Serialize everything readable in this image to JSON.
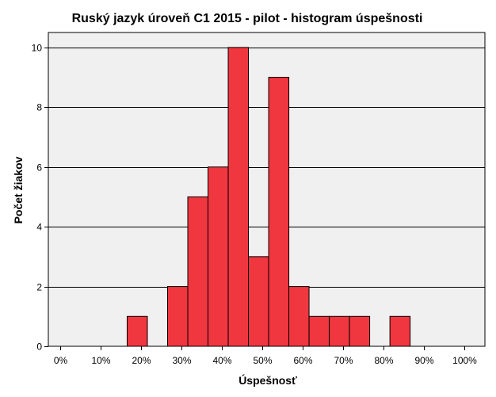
{
  "chart_data": {
    "type": "bar",
    "title": "Ruský jazyk úroveň C1 2015 - pilot - histogram úspešnosti",
    "xlabel": "Úspešnosť",
    "ylabel": "Počet žiakov",
    "x_unit": "percent",
    "xlim": [
      -3,
      105
    ],
    "ylim": [
      0,
      10.5
    ],
    "x_ticks": [
      0,
      10,
      20,
      30,
      40,
      50,
      60,
      70,
      80,
      90,
      100
    ],
    "x_tick_labels": [
      "0%",
      "10%",
      "20%",
      "30%",
      "40%",
      "50%",
      "60%",
      "70%",
      "80%",
      "90%",
      "100%"
    ],
    "y_ticks": [
      0,
      2,
      4,
      6,
      8,
      10
    ],
    "y_tick_labels": [
      "0",
      "2",
      "4",
      "6",
      "8",
      "10"
    ],
    "bin_width": 5,
    "bins": [
      {
        "from": 16.5,
        "to": 21.5,
        "count": 1
      },
      {
        "from": 26.5,
        "to": 31.5,
        "count": 2
      },
      {
        "from": 31.5,
        "to": 36.5,
        "count": 5
      },
      {
        "from": 36.5,
        "to": 41.5,
        "count": 6
      },
      {
        "from": 41.5,
        "to": 46.5,
        "count": 10
      },
      {
        "from": 46.5,
        "to": 51.5,
        "count": 3
      },
      {
        "from": 51.5,
        "to": 56.5,
        "count": 9
      },
      {
        "from": 56.5,
        "to": 61.5,
        "count": 2
      },
      {
        "from": 61.5,
        "to": 66.5,
        "count": 1
      },
      {
        "from": 66.5,
        "to": 71.5,
        "count": 1
      },
      {
        "from": 71.5,
        "to": 76.5,
        "count": 1
      },
      {
        "from": 81.5,
        "to": 86.5,
        "count": 1
      }
    ],
    "grid": true,
    "legend": "none",
    "colors": {
      "bar_fill": "#f0363f",
      "bar_edge": "#000000",
      "plot_background": "#f0f0f0",
      "grid_line": "#000000",
      "frame": "#000000"
    }
  }
}
